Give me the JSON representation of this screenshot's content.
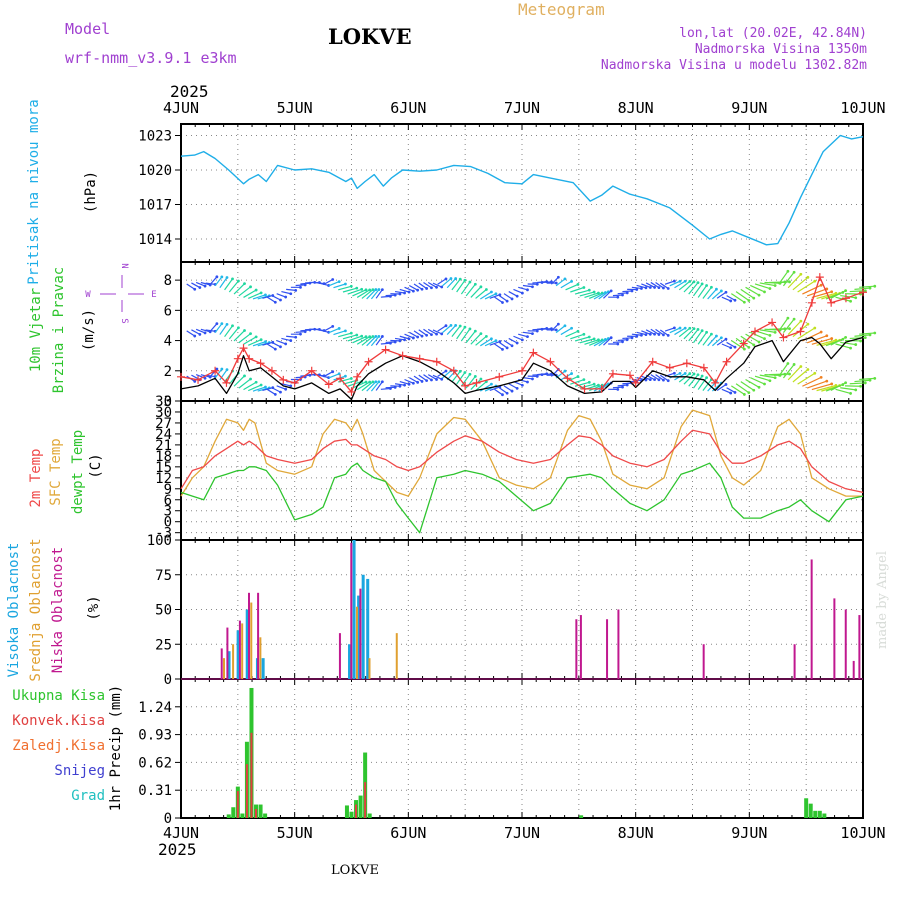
{
  "header": {
    "model_label": "Model",
    "model_name": "wrf-nmm_v3.9.1 e3km",
    "station": "LOKVE",
    "title": "Meteogram",
    "coords": "lon,lat (20.02E, 42.84N)",
    "altitude": "Nadmorska Visina 1350m",
    "model_altitude": "Nadmorska Visina u modelu 1302.82m",
    "year_top": "2025",
    "year_bottom": "2025",
    "footer_station": "LOKVE",
    "credit": "made by Angel"
  },
  "colors": {
    "pressure": "#1faee8",
    "wind_speed": "#000000",
    "wind_gust": "#ef3b3b",
    "t2m": "#ef4a4a",
    "sfc": "#e0a83a",
    "dew": "#2ec42e",
    "high_cloud": "#1aa6e0",
    "mid_cloud": "#e0a030",
    "low_cloud": "#c0188f",
    "total_precip": "#2ec42e",
    "conv_precip": "#e04040",
    "frozen": "#f07030",
    "snow": "#4040d0",
    "hail": "#20c0c0",
    "purple_text": "#a040d0",
    "orange_text": "#e0b060"
  },
  "chart_data": [
    {
      "id": "pressure",
      "type": "line",
      "ylabel_side": "Pritisak na nivou mora",
      "ylabel": "(hPa)",
      "yticks": [
        1023,
        1020,
        1017,
        1014
      ],
      "ylim": [
        1012,
        1024
      ],
      "x_unit": "days since 4JUN 00:00",
      "x": [
        0,
        0.12,
        0.2,
        0.3,
        0.42,
        0.55,
        0.6,
        0.68,
        0.75,
        0.85,
        1.0,
        1.15,
        1.3,
        1.45,
        1.5,
        1.55,
        1.62,
        1.7,
        1.78,
        1.85,
        1.95,
        2.1,
        2.25,
        2.4,
        2.55,
        2.7,
        2.85,
        3.0,
        3.1,
        3.25,
        3.45,
        3.6,
        3.7,
        3.8,
        3.95,
        4.1,
        4.3,
        4.5,
        4.65,
        4.75,
        4.85,
        5.0,
        5.15,
        5.25,
        5.35,
        5.45,
        5.55,
        5.65,
        5.8,
        5.9,
        6.0
      ],
      "series": [
        {
          "name": "Pritisak na nivou mora",
          "values": [
            1021.2,
            1021.3,
            1021.6,
            1021.0,
            1020.0,
            1018.8,
            1019.2,
            1019.6,
            1019.0,
            1020.4,
            1020.0,
            1020.1,
            1019.8,
            1019.0,
            1019.3,
            1018.4,
            1019.0,
            1019.6,
            1018.6,
            1019.3,
            1020.0,
            1019.9,
            1020.0,
            1020.4,
            1020.3,
            1019.7,
            1018.9,
            1018.8,
            1019.6,
            1019.3,
            1018.9,
            1017.3,
            1017.8,
            1018.6,
            1017.9,
            1017.5,
            1016.7,
            1015.2,
            1014.0,
            1014.4,
            1014.7,
            1014.1,
            1013.5,
            1013.6,
            1015.4,
            1017.6,
            1019.6,
            1021.6,
            1023.0,
            1022.7,
            1022.9
          ]
        }
      ]
    },
    {
      "id": "wind",
      "type": "line",
      "ylabel_side": [
        "10m Vjetar",
        "Brzina i Pravac"
      ],
      "ylabel": "(m/s)",
      "compass": [
        "N",
        "W",
        "E",
        "S"
      ],
      "yticks": [
        8,
        6,
        4,
        2,
        0
      ],
      "ylim": [
        0,
        9.2
      ],
      "x_unit": "days since 4JUN 00:00",
      "x": [
        0,
        0.15,
        0.3,
        0.4,
        0.5,
        0.55,
        0.6,
        0.7,
        0.8,
        0.9,
        1.0,
        1.15,
        1.3,
        1.4,
        1.5,
        1.55,
        1.65,
        1.8,
        1.95,
        2.1,
        2.25,
        2.4,
        2.5,
        2.6,
        2.8,
        3.0,
        3.1,
        3.25,
        3.4,
        3.55,
        3.7,
        3.8,
        3.95,
        4.0,
        4.15,
        4.3,
        4.45,
        4.6,
        4.7,
        4.8,
        4.95,
        5.05,
        5.2,
        5.3,
        5.45,
        5.55,
        5.62,
        5.72,
        5.85,
        6.0
      ],
      "series": [
        {
          "name": "Brzina vjetra",
          "values": [
            0.8,
            1.0,
            1.5,
            0.5,
            1.8,
            3.0,
            2.0,
            2.2,
            1.6,
            1.0,
            0.8,
            1.2,
            0.5,
            0.8,
            0.1,
            1.0,
            1.8,
            2.5,
            3.0,
            2.6,
            2.0,
            1.2,
            0.5,
            0.7,
            1.0,
            1.4,
            2.5,
            2.0,
            1.0,
            0.5,
            0.6,
            1.3,
            1.3,
            0.9,
            2.0,
            1.6,
            1.6,
            1.4,
            0.7,
            1.5,
            2.5,
            3.6,
            4.0,
            2.6,
            4.0,
            4.2,
            3.8,
            2.8,
            3.9,
            4.2
          ]
        },
        {
          "name": "Udar vjetra",
          "values": [
            1.6,
            1.4,
            2.0,
            1.2,
            2.8,
            3.5,
            2.8,
            2.5,
            2.0,
            1.4,
            1.2,
            2.0,
            1.1,
            1.5,
            0.6,
            1.6,
            2.6,
            3.4,
            3.0,
            2.8,
            2.6,
            2.0,
            1.0,
            1.2,
            1.6,
            2.0,
            3.2,
            2.6,
            1.5,
            0.8,
            0.8,
            1.8,
            1.7,
            1.2,
            2.6,
            2.2,
            2.5,
            2.2,
            1.2,
            2.6,
            3.8,
            4.6,
            5.2,
            4.2,
            4.6,
            6.5,
            8.2,
            6.5,
            6.8,
            7.2
          ]
        }
      ]
    },
    {
      "id": "temperature",
      "type": "line",
      "ylabel_side": [
        "2m Temp",
        "SFC Temp",
        "dewpt Temp"
      ],
      "ylabel": "(C)",
      "yticks": [
        33,
        30,
        27,
        24,
        21,
        18,
        15,
        12,
        9,
        6,
        3,
        0,
        -3
      ],
      "ylim": [
        -5,
        33
      ],
      "x_unit": "days since 4JUN 00:00",
      "x": [
        0,
        0.1,
        0.2,
        0.3,
        0.4,
        0.5,
        0.55,
        0.6,
        0.65,
        0.75,
        0.85,
        1.0,
        1.15,
        1.25,
        1.35,
        1.45,
        1.5,
        1.55,
        1.6,
        1.7,
        1.8,
        1.9,
        2.0,
        2.1,
        2.25,
        2.4,
        2.5,
        2.65,
        2.8,
        2.95,
        3.1,
        3.25,
        3.4,
        3.5,
        3.6,
        3.7,
        3.8,
        3.95,
        4.1,
        4.25,
        4.4,
        4.5,
        4.65,
        4.75,
        4.85,
        4.95,
        5.1,
        5.25,
        5.35,
        5.45,
        5.55,
        5.7,
        5.85,
        6.0
      ],
      "series": [
        {
          "name": "2m Temp",
          "values": [
            9,
            14,
            15,
            18,
            20,
            22,
            21,
            22,
            21,
            18,
            17,
            16,
            17,
            20,
            22,
            22.5,
            21,
            21,
            20,
            18,
            17,
            15,
            14,
            15,
            19,
            22,
            23.5,
            22,
            19,
            17,
            16,
            17,
            21,
            23.5,
            23,
            21,
            18,
            16,
            15,
            17,
            22,
            25,
            24,
            19,
            16,
            16,
            18,
            21,
            22,
            20,
            15,
            11,
            9,
            8
          ]
        },
        {
          "name": "SFC Temp",
          "values": [
            7,
            12,
            15,
            22,
            28,
            27,
            25,
            28,
            27,
            16,
            14,
            13,
            15,
            24,
            28,
            27,
            25,
            28,
            24,
            14,
            11,
            8,
            7,
            12,
            24,
            28.5,
            28,
            22,
            12,
            10,
            9,
            12,
            25,
            29,
            28,
            22,
            13,
            10,
            9,
            12,
            26,
            30.5,
            29,
            18,
            12,
            10,
            14,
            26,
            28,
            24,
            12,
            9,
            7,
            7
          ]
        },
        {
          "name": "dewpt Temp",
          "values": [
            8,
            7,
            6,
            12,
            13,
            14,
            14,
            15,
            15,
            14,
            10,
            0.5,
            2,
            4,
            12,
            13,
            15,
            16,
            14,
            12,
            11,
            5,
            1,
            -3,
            12,
            13,
            14,
            13,
            11,
            7,
            3,
            5,
            12,
            12.5,
            13,
            12,
            9,
            5,
            3,
            6,
            13,
            14,
            16,
            12,
            4,
            1,
            1,
            3,
            4,
            6,
            3,
            0,
            6,
            7
          ]
        }
      ]
    },
    {
      "id": "clouds",
      "type": "bar",
      "ylabel_side": [
        "Visoka Oblacnost",
        "Srednja Oblacnost",
        "Niska Oblacnost"
      ],
      "ylabel": "(%)",
      "yticks": [
        100,
        75,
        50,
        25,
        0
      ],
      "ylim": [
        0,
        100
      ],
      "x_unit": "days since 4JUN 00:00",
      "series": [
        {
          "name": "Visoka Oblacnost",
          "x": [
            0.42,
            0.5,
            0.58,
            0.67,
            0.72,
            1.48,
            1.52,
            1.56,
            1.6,
            1.64
          ],
          "values": [
            20,
            35,
            50,
            15,
            15,
            25,
            100,
            60,
            75,
            72
          ]
        },
        {
          "name": "Srednja Oblacnost",
          "x": [
            0.38,
            0.46,
            0.54,
            0.62,
            0.7,
            1.55,
            1.66,
            1.9
          ],
          "values": [
            15,
            25,
            40,
            55,
            30,
            52,
            15,
            33
          ]
        },
        {
          "name": "Niska Oblacnost",
          "x": [
            0.36,
            0.41,
            0.52,
            0.6,
            0.68,
            1.4,
            1.5,
            1.58,
            3.48,
            3.52,
            3.75,
            3.85,
            4.6,
            5.4,
            5.55,
            5.75,
            5.85,
            5.92,
            5.97
          ],
          "values": [
            22,
            37,
            42,
            62,
            62,
            33,
            98,
            65,
            43,
            46,
            43,
            50,
            25,
            25,
            86,
            58,
            50,
            13,
            46
          ]
        }
      ]
    },
    {
      "id": "precip",
      "type": "bar",
      "ylabel_side": [
        "Ukupna Kisa",
        "Konvek.Kisa",
        "Zaledj.Kisa",
        "Snijeg",
        "Grad"
      ],
      "ylabel": "1hr Precip (mm)",
      "yticks": [
        1.24,
        0.93,
        0.62,
        0.31,
        0
      ],
      "ylim": [
        0,
        1.55
      ],
      "x_unit": "days since 4JUN 00:00",
      "xtick_labels": [
        "4JUN",
        "5JUN",
        "6JUN",
        "7JUN",
        "8JUN",
        "9JUN",
        "10JUN"
      ],
      "series": [
        {
          "name": "Ukupna Kisa",
          "x": [
            0.42,
            0.46,
            0.5,
            0.54,
            0.58,
            0.62,
            0.66,
            0.7,
            0.74,
            1.46,
            1.5,
            1.54,
            1.58,
            1.62,
            1.66,
            3.52,
            5.5,
            5.54,
            5.58,
            5.62,
            5.66
          ],
          "values": [
            0.04,
            0.12,
            0.35,
            0.05,
            0.85,
            1.45,
            0.15,
            0.15,
            0.05,
            0.14,
            0.07,
            0.2,
            0.25,
            0.73,
            0.05,
            0.03,
            0.22,
            0.16,
            0.08,
            0.08,
            0.05
          ]
        },
        {
          "name": "Konvek.Kisa",
          "x": [
            0.5,
            0.58,
            0.62,
            0.66,
            1.54,
            1.62
          ],
          "values": [
            0.3,
            0.6,
            0.95,
            0.1,
            0.15,
            0.4
          ]
        }
      ]
    }
  ]
}
